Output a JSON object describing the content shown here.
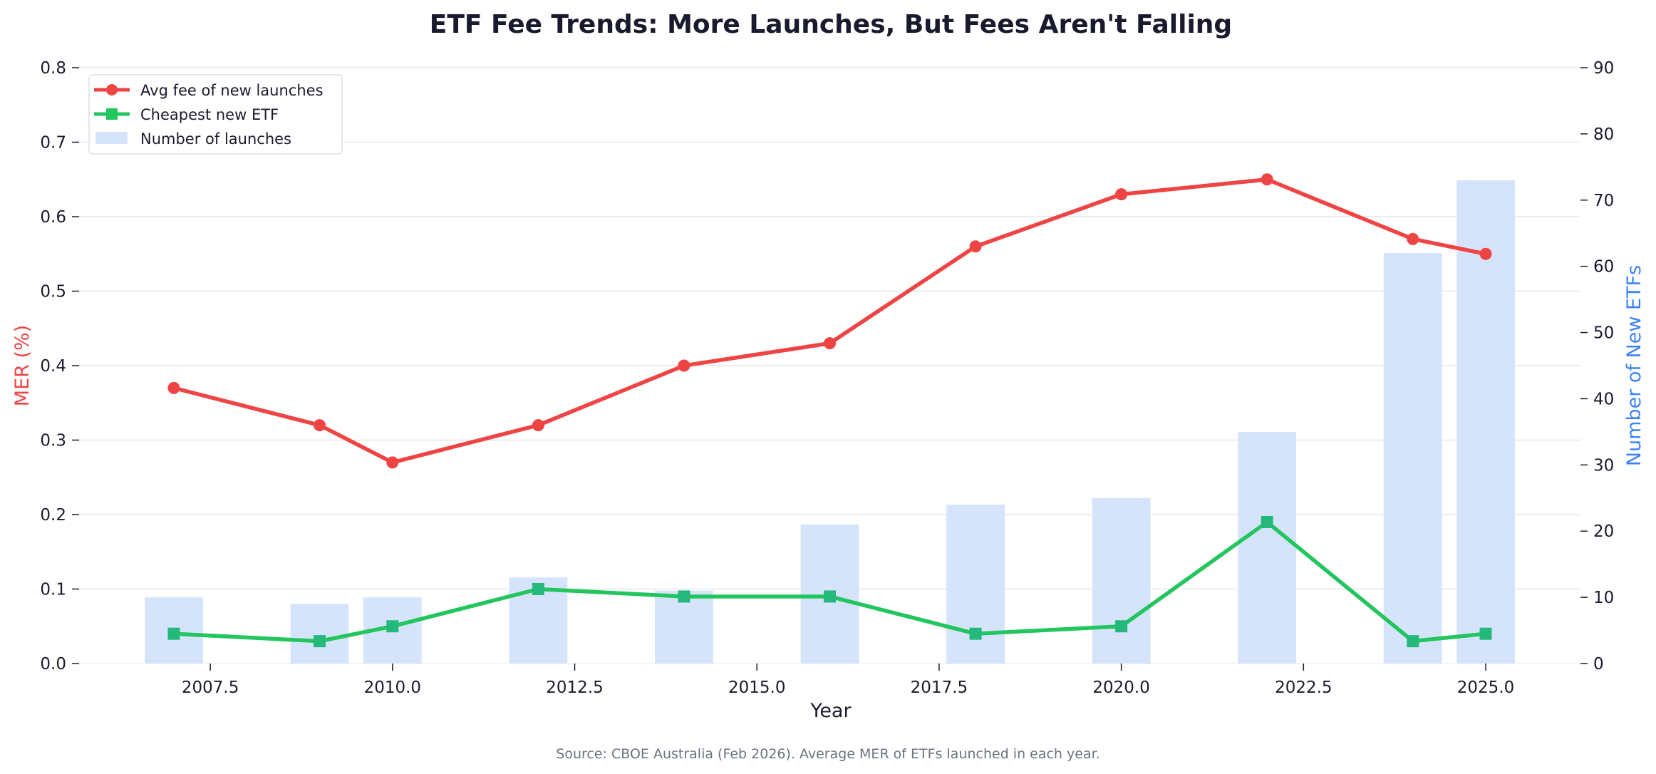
{
  "chart_data": {
    "type": "bar+line",
    "title": "ETF Fee Trends: More Launches, But Fees Aren't Falling",
    "xlabel": "Year",
    "ylabel_left": "MER (%)",
    "ylabel_right": "Number of New ETFs",
    "source_note": "Source: CBOE Australia (Feb 2026). Average MER of ETFs launched in each year.",
    "x": [
      2007,
      2009,
      2010,
      2012,
      2014,
      2016,
      2018,
      2020,
      2022,
      2024,
      2025
    ],
    "xlim": [
      2005.7,
      2026.3
    ],
    "x_ticks": [
      2007.5,
      2010.0,
      2012.5,
      2015.0,
      2017.5,
      2020.0,
      2022.5,
      2025.0
    ],
    "x_tick_labels": [
      "2007.5",
      "2010.0",
      "2012.5",
      "2015.0",
      "2017.5",
      "2020.0",
      "2022.5",
      "2025.0"
    ],
    "ylim_left": [
      0,
      0.8
    ],
    "y_ticks_left": [
      "0.0",
      "0.1",
      "0.2",
      "0.3",
      "0.4",
      "0.5",
      "0.6",
      "0.7",
      "0.8"
    ],
    "ylim_right": [
      0,
      90
    ],
    "y_ticks_right": [
      "0",
      "10",
      "20",
      "30",
      "40",
      "50",
      "60",
      "70",
      "80",
      "90"
    ],
    "grid": true,
    "legend_position": "top-left",
    "series": [
      {
        "name": "Avg fee of new launches",
        "type": "line",
        "axis": "left",
        "marker": "circle",
        "color": "#ef4444",
        "values": [
          0.37,
          0.32,
          0.27,
          0.32,
          0.4,
          0.43,
          0.56,
          0.63,
          0.65,
          0.57,
          0.55
        ]
      },
      {
        "name": "Cheapest new ETF",
        "type": "line",
        "axis": "left",
        "marker": "square",
        "color": "#22c55e",
        "values": [
          0.04,
          0.03,
          0.05,
          0.1,
          0.09,
          0.09,
          0.04,
          0.05,
          0.19,
          0.03,
          0.04
        ]
      },
      {
        "name": "Number of launches",
        "type": "bar",
        "axis": "right",
        "color": "#d6e4fb",
        "values": [
          10,
          9,
          10,
          13,
          11,
          21,
          24,
          25,
          35,
          62,
          73
        ]
      }
    ]
  },
  "colors": {
    "left_axis_label": "#ef4444",
    "right_axis_label": "#3b82f6",
    "text": "#1a1a2e",
    "grid": "#e5e7eb",
    "source": "#6b7280"
  }
}
